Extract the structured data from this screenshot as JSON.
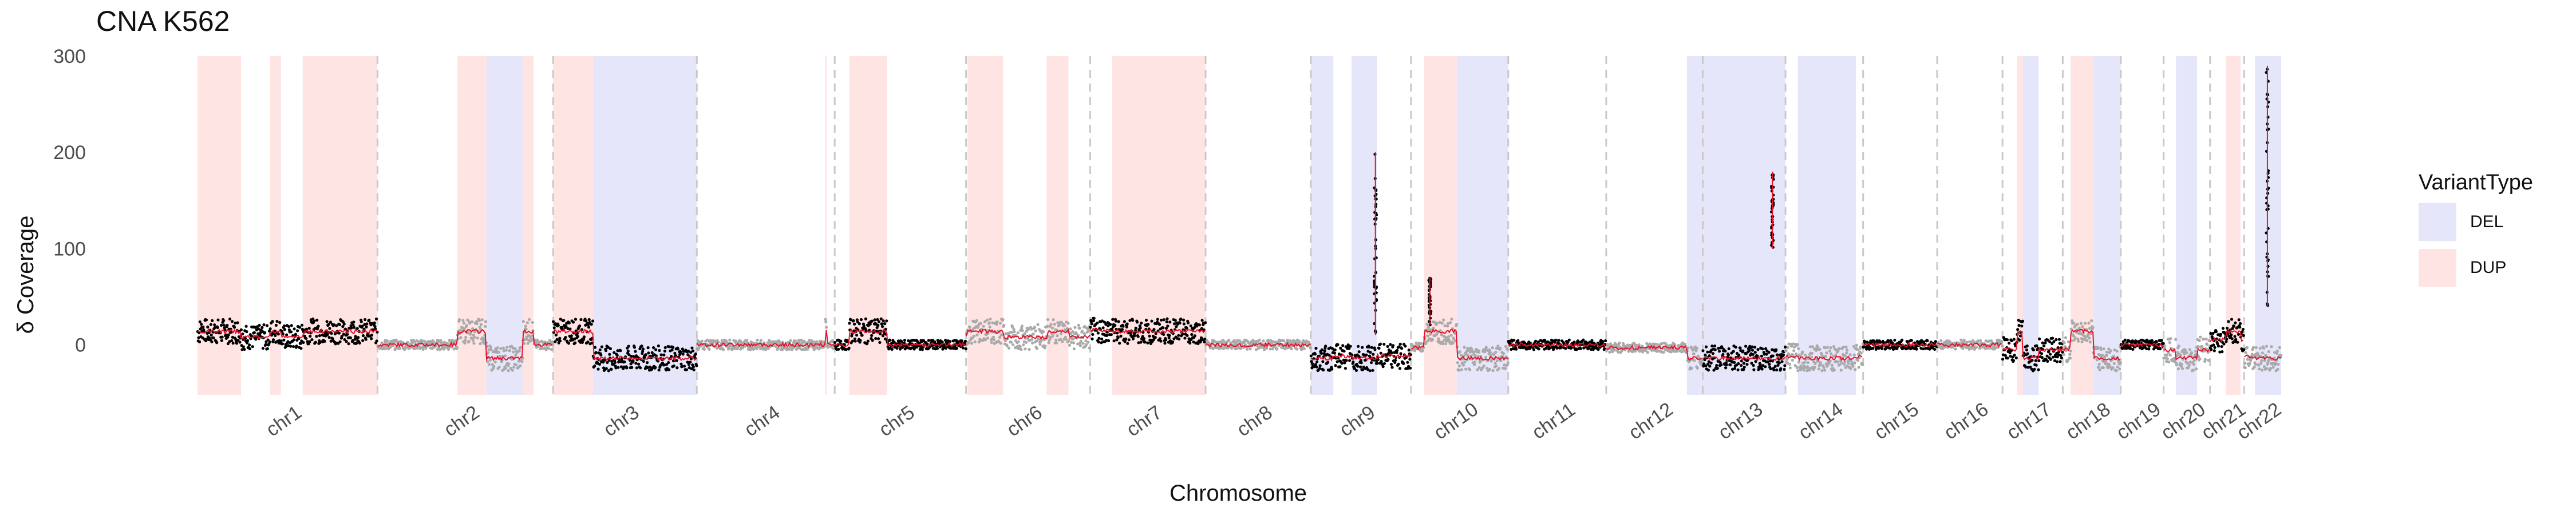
{
  "chart_data": {
    "type": "scatter",
    "title": "CNA K562",
    "xlabel": "Chromosome",
    "ylabel": "δ Coverage",
    "ylim": [
      -52,
      300
    ],
    "yticks": [
      0,
      100,
      200,
      300
    ],
    "grid": false,
    "legend": {
      "title": "VariantType",
      "placement": "right",
      "items": [
        {
          "label": "DEL",
          "color": "#e6e6fa"
        },
        {
          "label": "DUP",
          "color": "#ffe4e4"
        }
      ]
    },
    "colors": {
      "point_segment_a": "#000000",
      "point_segment_b": "#aaaaaa",
      "trend_line": "#e8102a",
      "boundary_line": "#c9c9c9",
      "axis_text": "#4d4d4d"
    },
    "chromosomes": [
      {
        "name": "chr1",
        "start": 0,
        "end": 248,
        "level": 8
      },
      {
        "name": "chr2",
        "start": 248,
        "end": 490,
        "level": 0
      },
      {
        "name": "chr3",
        "start": 490,
        "end": 688,
        "level": -12
      },
      {
        "name": "chr4",
        "start": 688,
        "end": 878,
        "level": 0
      },
      {
        "name": "chr5",
        "start": 878,
        "end": 1059,
        "level": 0
      },
      {
        "name": "chr6",
        "start": 1059,
        "end": 1230,
        "level": 8
      },
      {
        "name": "chr7",
        "start": 1230,
        "end": 1389,
        "level": 15
      },
      {
        "name": "chr8",
        "start": 1389,
        "end": 1534,
        "level": 0
      },
      {
        "name": "chr9",
        "start": 1534,
        "end": 1672,
        "level": -12
      },
      {
        "name": "chr10",
        "start": 1672,
        "end": 1806,
        "level": -3
      },
      {
        "name": "chr11",
        "start": 1806,
        "end": 1941,
        "level": 0
      },
      {
        "name": "chr12",
        "start": 1941,
        "end": 2074,
        "level": -3
      },
      {
        "name": "chr13",
        "start": 2074,
        "end": 2188,
        "level": -12
      },
      {
        "name": "chr14",
        "start": 2188,
        "end": 2295,
        "level": -12
      },
      {
        "name": "chr15",
        "start": 2295,
        "end": 2397,
        "level": 0
      },
      {
        "name": "chr16",
        "start": 2397,
        "end": 2487,
        "level": 0
      },
      {
        "name": "chr17",
        "start": 2487,
        "end": 2570,
        "level": -5
      },
      {
        "name": "chr18",
        "start": 2570,
        "end": 2650,
        "level": -5
      },
      {
        "name": "chr19",
        "start": 2650,
        "end": 2709,
        "level": 0
      },
      {
        "name": "chr20",
        "start": 2709,
        "end": 2773,
        "level": -5
      },
      {
        "name": "chr21",
        "start": 2773,
        "end": 2820,
        "level": 5
      },
      {
        "name": "chr22",
        "start": 2820,
        "end": 2871,
        "level": -12
      }
    ],
    "variant_regions": [
      {
        "type": "DUP",
        "start": 0,
        "end": 60
      },
      {
        "type": "DUP",
        "start": 100,
        "end": 115
      },
      {
        "type": "DUP",
        "start": 145,
        "end": 248
      },
      {
        "type": "DUP",
        "start": 358,
        "end": 398
      },
      {
        "type": "DEL",
        "start": 398,
        "end": 448
      },
      {
        "type": "DUP",
        "start": 448,
        "end": 463
      },
      {
        "type": "DUP",
        "start": 490,
        "end": 545
      },
      {
        "type": "DEL",
        "start": 545,
        "end": 688
      },
      {
        "type": "DUP",
        "start": 865,
        "end": 867
      },
      {
        "type": "DUP",
        "start": 898,
        "end": 950
      },
      {
        "type": "DUP",
        "start": 1061,
        "end": 1110
      },
      {
        "type": "DUP",
        "start": 1170,
        "end": 1200
      },
      {
        "type": "DUP",
        "start": 1260,
        "end": 1389
      },
      {
        "type": "DEL",
        "start": 1534,
        "end": 1565
      },
      {
        "type": "DEL",
        "start": 1590,
        "end": 1625
      },
      {
        "type": "DUP",
        "start": 1690,
        "end": 1735
      },
      {
        "type": "DEL",
        "start": 1735,
        "end": 1806
      },
      {
        "type": "DEL",
        "start": 2052,
        "end": 2074
      },
      {
        "type": "DEL",
        "start": 2074,
        "end": 2188
      },
      {
        "type": "DEL",
        "start": 2205,
        "end": 2285
      },
      {
        "type": "DUP",
        "start": 2507,
        "end": 2515
      },
      {
        "type": "DEL",
        "start": 2515,
        "end": 2537
      },
      {
        "type": "DUP",
        "start": 2581,
        "end": 2595
      },
      {
        "type": "DEL",
        "start": 2612,
        "end": 2650
      },
      {
        "type": "DUP",
        "start": 2595,
        "end": 2612
      },
      {
        "type": "DEL",
        "start": 2726,
        "end": 2755
      },
      {
        "type": "DUP",
        "start": 2795,
        "end": 2815
      },
      {
        "type": "DEL",
        "start": 2835,
        "end": 2871
      }
    ],
    "spikes": [
      {
        "x": 1623,
        "y_min": 10,
        "y_max": 200
      },
      {
        "x": 2170,
        "y_min": 100,
        "y_max": 180
      },
      {
        "x": 2852,
        "y_min": 40,
        "y_max": 290
      },
      {
        "x": 1698,
        "y_min": 20,
        "y_max": 70
      }
    ]
  }
}
